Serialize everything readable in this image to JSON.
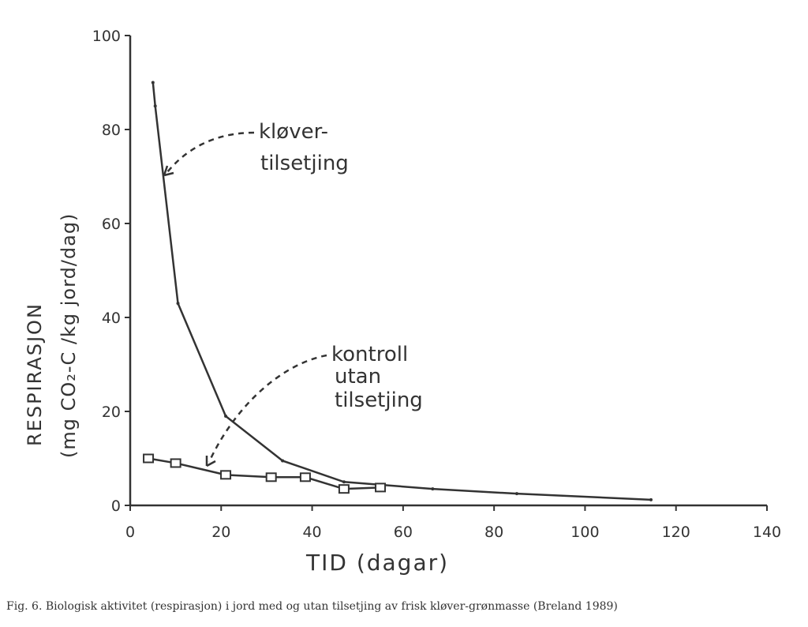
{
  "chart_data": {
    "type": "line",
    "title": "",
    "xlabel": "TID (dagar)",
    "ylabel_line1": "RESPIRASJON",
    "ylabel_line2": "(mg CO2-C /kg jord/dag)",
    "xlim": [
      0,
      140
    ],
    "ylim": [
      0,
      100
    ],
    "x_ticks": [
      0,
      20,
      40,
      60,
      80,
      100,
      120,
      140
    ],
    "y_ticks": [
      0,
      20,
      40,
      60,
      80,
      100
    ],
    "grid": false,
    "series": [
      {
        "name": "kløver-tilsetjing",
        "marker": "small-dot",
        "x": [
          5,
          5.5,
          10.5,
          21,
          33.5,
          47,
          66.5,
          85,
          114.5
        ],
        "y": [
          90,
          85,
          43,
          19,
          9.5,
          5,
          3.5,
          2.5,
          1.2
        ]
      },
      {
        "name": "kontroll utan tilsetjing",
        "marker": "square",
        "x": [
          4,
          10,
          21,
          31,
          38.5,
          47,
          55
        ],
        "y": [
          10,
          9,
          6.5,
          6,
          6,
          3.5,
          3.8
        ]
      }
    ],
    "annotations": [
      {
        "lines": [
          "kløver-",
          "tilsetjing"
        ],
        "points_to": "kløver-tilsetjing"
      },
      {
        "lines": [
          "kontroll",
          "utan",
          "tilsetjing"
        ],
        "points_to": "kontroll utan tilsetjing"
      }
    ]
  },
  "caption": "Fig. 6. Biologisk aktivitet (respirasjon) i jord med og utan tilsetjing av frisk kløver-grønmasse (Breland 1989)",
  "labels": {
    "xlabel": "TID (dagar)",
    "ylabel1": "RESPIRASJON",
    "ylabel2": "(mg CO₂-C /kg jord/dag)",
    "anno1_l1": "kløver-",
    "anno1_l2": "tilsetjing",
    "anno2_l1": "kontroll",
    "anno2_l2": "utan",
    "anno2_l3": "tilsetjing"
  },
  "colors": {
    "ink": "#333333",
    "background": "#ffffff"
  }
}
